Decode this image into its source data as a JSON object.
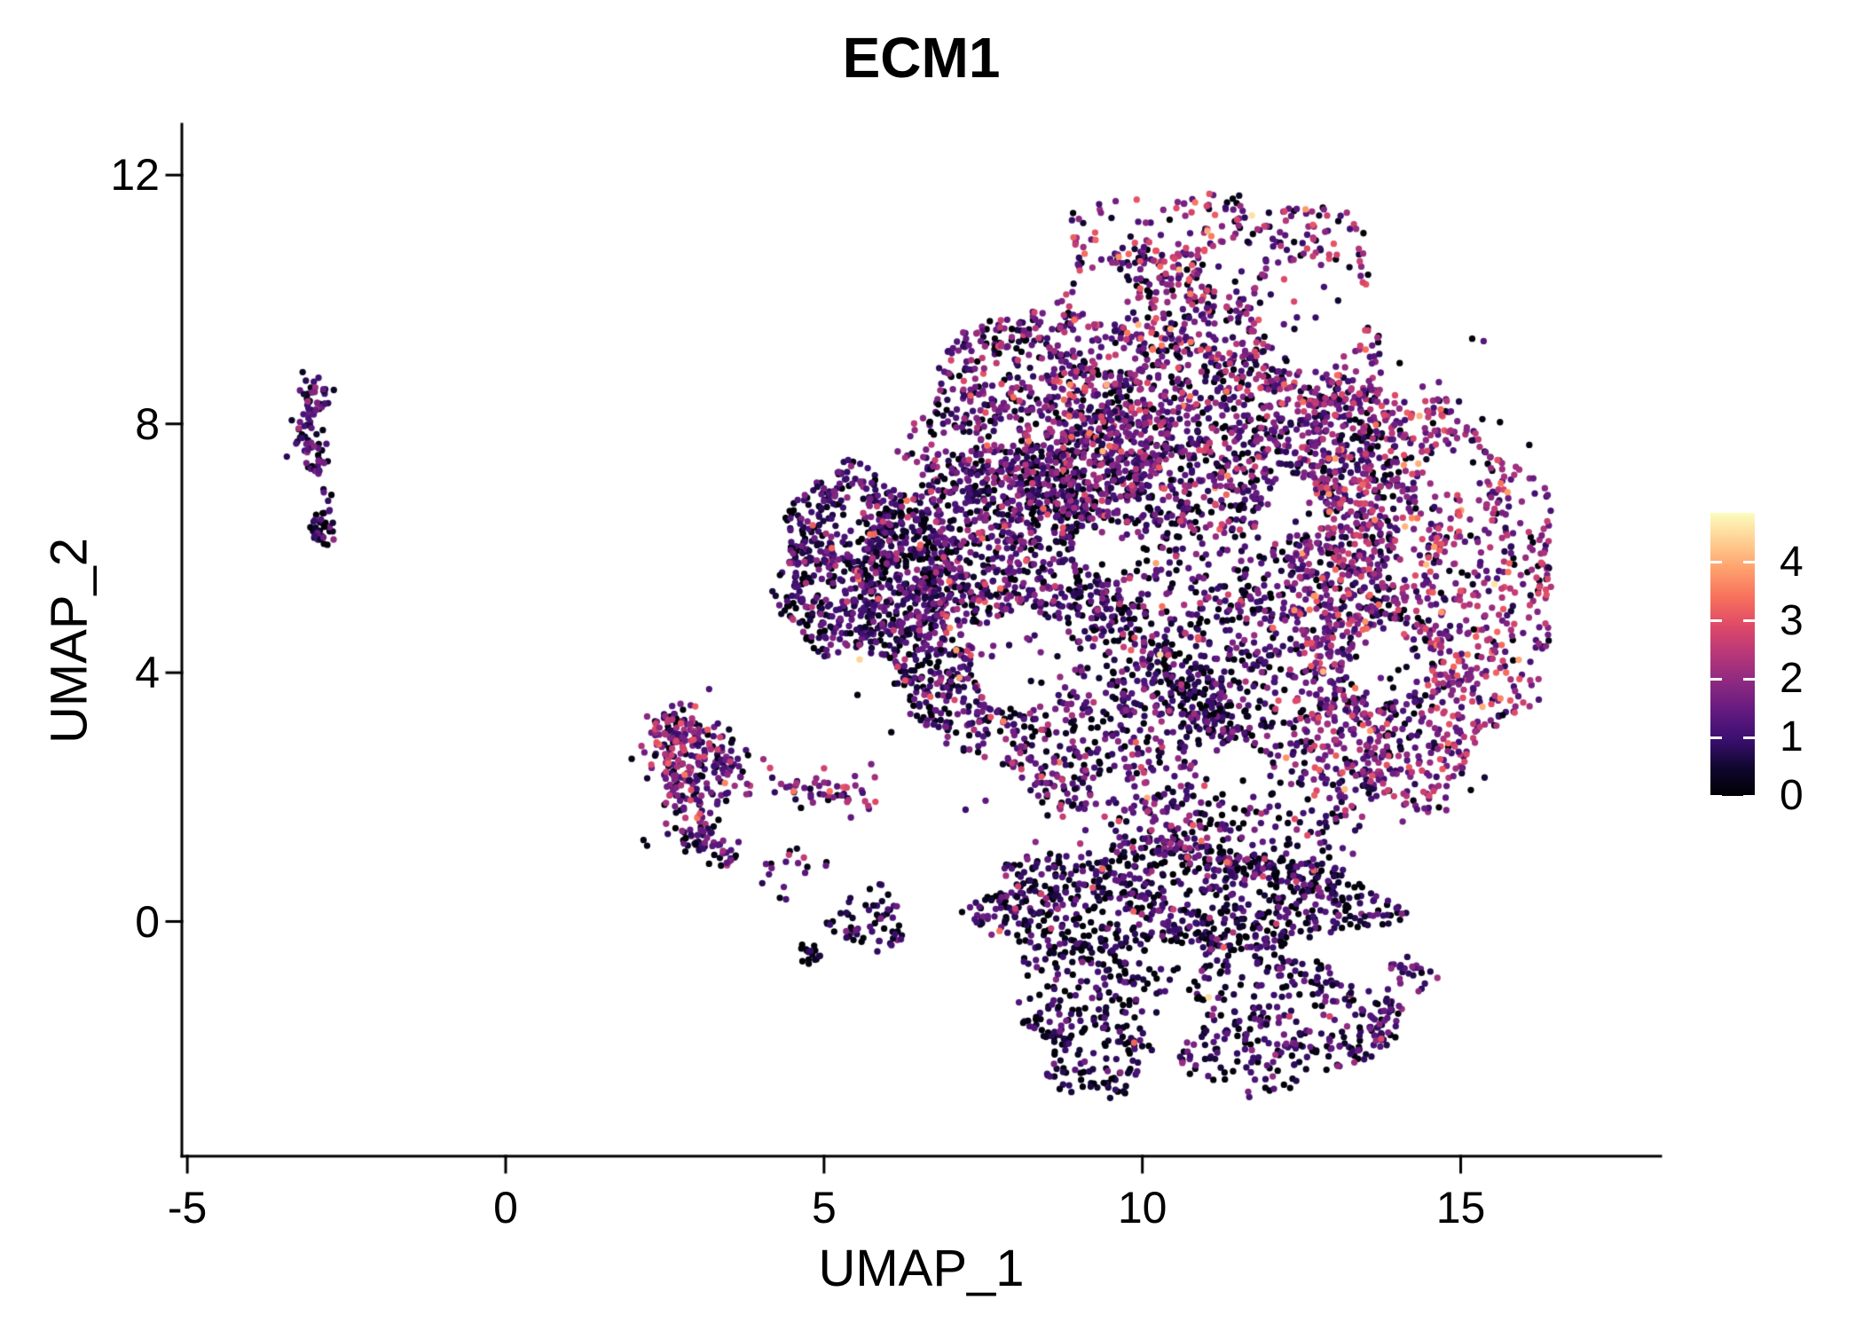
{
  "figure": {
    "background": "#FFFFFF",
    "axis_color": "#000000",
    "text_color": "#000000"
  },
  "chart_data": {
    "type": "scatter",
    "title": "ECM1",
    "xlabel": "UMAP_1",
    "ylabel": "UMAP_2",
    "x_ticks": [
      {
        "value": -5,
        "label": "-5"
      },
      {
        "value": 0,
        "label": "0"
      },
      {
        "value": 5,
        "label": "5"
      },
      {
        "value": 10,
        "label": "10"
      },
      {
        "value": 15,
        "label": "15"
      }
    ],
    "y_ticks": [
      {
        "value": 0,
        "label": "0"
      },
      {
        "value": 4,
        "label": "4"
      },
      {
        "value": 8,
        "label": "8"
      },
      {
        "value": 12,
        "label": "12"
      }
    ],
    "x_range": [
      -5.08,
      18.13
    ],
    "y_range": [
      -3.77,
      12.81
    ],
    "point_radius_px": 3.65,
    "seed": 42,
    "colorbar": {
      "vmin": 0,
      "vmax": 4.85,
      "ticks": [
        {
          "value": 0,
          "label": "0"
        },
        {
          "value": 1,
          "label": "1"
        },
        {
          "value": 2,
          "label": "2"
        },
        {
          "value": 3,
          "label": "3"
        },
        {
          "value": 4,
          "label": "4"
        }
      ],
      "tick_mark_color": "#FFFFFF",
      "palette_name": "magma",
      "palette_stops": [
        "#000004",
        "#10072E",
        "#3B0F70",
        "#641A80",
        "#8C2981",
        "#B73779",
        "#DE4968",
        "#F7705C",
        "#FE9F6D",
        "#FECF92",
        "#FCFDBF"
      ]
    },
    "umap_clusters": [
      {
        "name": "left-strip-upper",
        "shape": "strip",
        "x1": -2.88,
        "y1": 8.68,
        "x2": -3.18,
        "y2": 7.9,
        "w": 0.3,
        "n": 45,
        "mean": 0.95,
        "sd": 0.6,
        "black": 0.1,
        "hot": 0.02,
        "vd": false
      },
      {
        "name": "left-strip-mid",
        "shape": "strip",
        "x1": -3.18,
        "y1": 7.9,
        "x2": -2.92,
        "y2": 7.3,
        "w": 0.26,
        "n": 38,
        "mean": 0.95,
        "sd": 0.6,
        "black": 0.1,
        "hot": 0.02,
        "vd": false
      },
      {
        "name": "left-strip-bridge",
        "shape": "strip",
        "x1": -2.92,
        "y1": 7.3,
        "x2": -2.8,
        "y2": 6.75,
        "w": 0.14,
        "n": 7,
        "mean": 0.8,
        "sd": 0.5,
        "black": 0.1,
        "hot": 0.0,
        "vd": false
      },
      {
        "name": "left-strip-lower",
        "shape": "disc",
        "cx": -2.85,
        "cy": 6.35,
        "rx": 0.2,
        "ry": 0.32,
        "n": 34,
        "edge": 0.1,
        "mean": 0.8,
        "sd": 0.55,
        "black": 0.18,
        "hot": 0.01,
        "vd": false
      },
      {
        "name": "comma-left-edge",
        "shape": "strip",
        "x1": 2.5,
        "y1": 3.3,
        "x2": 2.95,
        "y2": 1.4,
        "w": 0.5,
        "n": 150,
        "mean": 1.4,
        "sd": 0.8,
        "black": 0.07,
        "hot": 0.05,
        "vd": false
      },
      {
        "name": "comma-top",
        "shape": "strip",
        "x1": 2.55,
        "y1": 3.25,
        "x2": 3.65,
        "y2": 2.4,
        "w": 0.45,
        "n": 95,
        "mean": 1.45,
        "sd": 0.8,
        "black": 0.06,
        "hot": 0.06,
        "vd": false
      },
      {
        "name": "comma-inner",
        "shape": "disc",
        "cx": 3.05,
        "cy": 2.4,
        "rx": 0.55,
        "ry": 0.6,
        "n": 28,
        "edge": 0.1,
        "mean": 1.2,
        "sd": 0.7,
        "black": 0.08,
        "hot": 0.03,
        "vd": false
      },
      {
        "name": "comma-hook-bottom",
        "shape": "strip",
        "x1": 2.95,
        "y1": 1.35,
        "x2": 3.55,
        "y2": 1.0,
        "w": 0.3,
        "n": 45,
        "mean": 1.2,
        "sd": 0.7,
        "black": 0.1,
        "hot": 0.04,
        "vd": false
      },
      {
        "name": "comma-arm",
        "shape": "strip",
        "x1": 3.65,
        "y1": 2.3,
        "x2": 5.75,
        "y2": 1.95,
        "w": 0.3,
        "n": 58,
        "mean": 1.5,
        "sd": 0.8,
        "black": 0.05,
        "hot": 0.07,
        "vd": false
      },
      {
        "name": "comma-tail",
        "shape": "disc",
        "cx": 4.6,
        "cy": 0.75,
        "rx": 0.55,
        "ry": 0.5,
        "n": 18,
        "edge": 0.1,
        "mean": 1.1,
        "sd": 0.7,
        "black": 0.12,
        "hot": 0.05,
        "vd": false
      },
      {
        "name": "small-dark-clump",
        "shape": "disc",
        "cx": 4.78,
        "cy": -0.5,
        "rx": 0.2,
        "ry": 0.2,
        "n": 16,
        "edge": 0.1,
        "mean": 0.3,
        "sd": 0.3,
        "black": 0.45,
        "hot": 0.0,
        "vd": false
      },
      {
        "name": "small-loose-group",
        "shape": "disc",
        "cx": 5.75,
        "cy": 0.02,
        "rx": 0.6,
        "ry": 0.52,
        "n": 60,
        "edge": 0.15,
        "mean": 0.75,
        "sd": 0.6,
        "black": 0.22,
        "hot": 0.015,
        "vd": false
      },
      {
        "name": "main-core",
        "shape": "disc",
        "cx": 10.6,
        "cy": 4.9,
        "rx": 4.05,
        "ry": 4.25,
        "n": 2500,
        "edge": 0.1,
        "mean": 1.15,
        "sd": 0.7,
        "black": 0.12,
        "hot": 0.028,
        "vd": true
      },
      {
        "name": "main-top-cap",
        "shape": "disc",
        "cx": 10.7,
        "cy": 8.7,
        "rx": 3.35,
        "ry": 2.25,
        "n": 950,
        "edge": 0.12,
        "mean": 1.5,
        "sd": 0.8,
        "black": 0.08,
        "hot": 0.05,
        "vd": true
      },
      {
        "name": "main-apex",
        "shape": "disc",
        "cx": 11.1,
        "cy": 10.55,
        "rx": 2.35,
        "ry": 1.25,
        "n": 250,
        "edge": 0.15,
        "mean": 1.6,
        "sd": 0.85,
        "black": 0.06,
        "hot": 0.07,
        "vd": true
      },
      {
        "name": "main-right-bulge",
        "shape": "disc",
        "cx": 14.3,
        "cy": 5.3,
        "rx": 2.05,
        "ry": 3.45,
        "n": 1050,
        "edge": 0.1,
        "mean": 1.75,
        "sd": 0.75,
        "black": 0.05,
        "hot": 0.06,
        "vd": true
      },
      {
        "name": "left-wedge",
        "shape": "disc",
        "cx": 5.6,
        "cy": 5.75,
        "rx": 1.4,
        "ry": 1.45,
        "n": 640,
        "edge": 0.12,
        "mean": 0.95,
        "sd": 0.6,
        "black": 0.15,
        "hot": 0.012,
        "vd": true
      },
      {
        "name": "left-mid-band",
        "shape": "disc",
        "cx": 7.05,
        "cy": 5.3,
        "rx": 1.55,
        "ry": 2.35,
        "n": 520,
        "edge": 0.1,
        "mean": 1.05,
        "sd": 0.65,
        "black": 0.13,
        "hot": 0.02,
        "vd": true
      },
      {
        "name": "upper-left-band",
        "shape": "disc",
        "cx": 8.2,
        "cy": 7.85,
        "rx": 1.95,
        "ry": 1.65,
        "n": 420,
        "edge": 0.12,
        "mean": 1.25,
        "sd": 0.7,
        "black": 0.1,
        "hot": 0.03,
        "vd": true
      },
      {
        "name": "bottom-band",
        "shape": "disc",
        "cx": 10.5,
        "cy": 0.35,
        "rx": 3.25,
        "ry": 0.9,
        "n": 780,
        "edge": 0.1,
        "mean": 0.85,
        "sd": 0.6,
        "black": 0.2,
        "hot": 0.012,
        "vd": true
      },
      {
        "name": "bottom-lobe-left",
        "shape": "disc",
        "cx": 9.3,
        "cy": -1.5,
        "rx": 1.3,
        "ry": 1.2,
        "n": 250,
        "edge": 0.15,
        "mean": 0.7,
        "sd": 0.55,
        "black": 0.25,
        "hot": 0.008,
        "vd": true
      },
      {
        "name": "bottom-lobe-right",
        "shape": "disc",
        "cx": 12.1,
        "cy": -1.6,
        "rx": 1.65,
        "ry": 1.15,
        "n": 300,
        "edge": 0.15,
        "mean": 0.9,
        "sd": 0.6,
        "black": 0.18,
        "hot": 0.012,
        "vd": true
      },
      {
        "name": "bottom-right-arc",
        "shape": "strip",
        "x1": 13.35,
        "y1": -2.3,
        "x2": 14.35,
        "y2": -0.7,
        "w": 0.38,
        "n": 70,
        "mean": 1.1,
        "sd": 0.65,
        "black": 0.12,
        "hot": 0.02,
        "vd": false
      },
      {
        "name": "dark-streak-upper",
        "shape": "strip",
        "x1": 8.6,
        "y1": 7.2,
        "x2": 9.6,
        "y2": 4.7,
        "w": 0.55,
        "n": 170,
        "mean": 0.75,
        "sd": 0.55,
        "black": 0.25,
        "hot": 0.008,
        "vd": true
      },
      {
        "name": "dark-streak-mid",
        "shape": "strip",
        "x1": 10.2,
        "y1": 4.3,
        "x2": 11.7,
        "y2": 2.6,
        "w": 0.5,
        "n": 150,
        "mean": 0.7,
        "sd": 0.55,
        "black": 0.28,
        "hot": 0.006,
        "vd": true
      },
      {
        "name": "stray-halo",
        "shape": "disc",
        "cx": 10.8,
        "cy": 4.6,
        "rx": 5.9,
        "ry": 6.3,
        "n": 110,
        "edge": 0.06,
        "mean": 1.1,
        "sd": 0.7,
        "black": 0.12,
        "hot": 0.03,
        "vd": false
      }
    ],
    "voids": [
      {
        "x": 8.1,
        "y": 4.2,
        "r": 0.8
      },
      {
        "x": 9.45,
        "y": 6.0,
        "r": 0.52
      },
      {
        "x": 12.7,
        "y": 9.8,
        "r": 0.85
      },
      {
        "x": 13.9,
        "y": 4.2,
        "r": 0.62
      },
      {
        "x": 11.5,
        "y": 2.4,
        "r": 0.5
      },
      {
        "x": 10.45,
        "y": -1.6,
        "r": 0.48
      },
      {
        "x": 9.1,
        "y": 1.35,
        "r": 0.42
      },
      {
        "x": 14.9,
        "y": 7.3,
        "r": 0.45
      },
      {
        "x": 12.35,
        "y": 6.65,
        "r": 0.45
      },
      {
        "x": 7.7,
        "y": 2.1,
        "r": 0.42
      },
      {
        "x": 11.4,
        "y": 10.5,
        "r": 0.45
      },
      {
        "x": 9.4,
        "y": 10.1,
        "r": 0.45
      }
    ],
    "special_points": [
      {
        "x": 11.72,
        "y": 11.35,
        "v": 4.55
      },
      {
        "x": 11.42,
        "y": 11.62,
        "v": 0.1
      },
      {
        "x": 11.52,
        "y": 11.67,
        "v": 0.4
      },
      {
        "x": 11.33,
        "y": 11.56,
        "v": 0.15
      },
      {
        "x": 11.48,
        "y": 11.55,
        "v": 0.05
      },
      {
        "x": 15.18,
        "y": 9.37,
        "v": 0.05
      },
      {
        "x": 15.36,
        "y": 9.33,
        "v": 1.3
      }
    ]
  }
}
